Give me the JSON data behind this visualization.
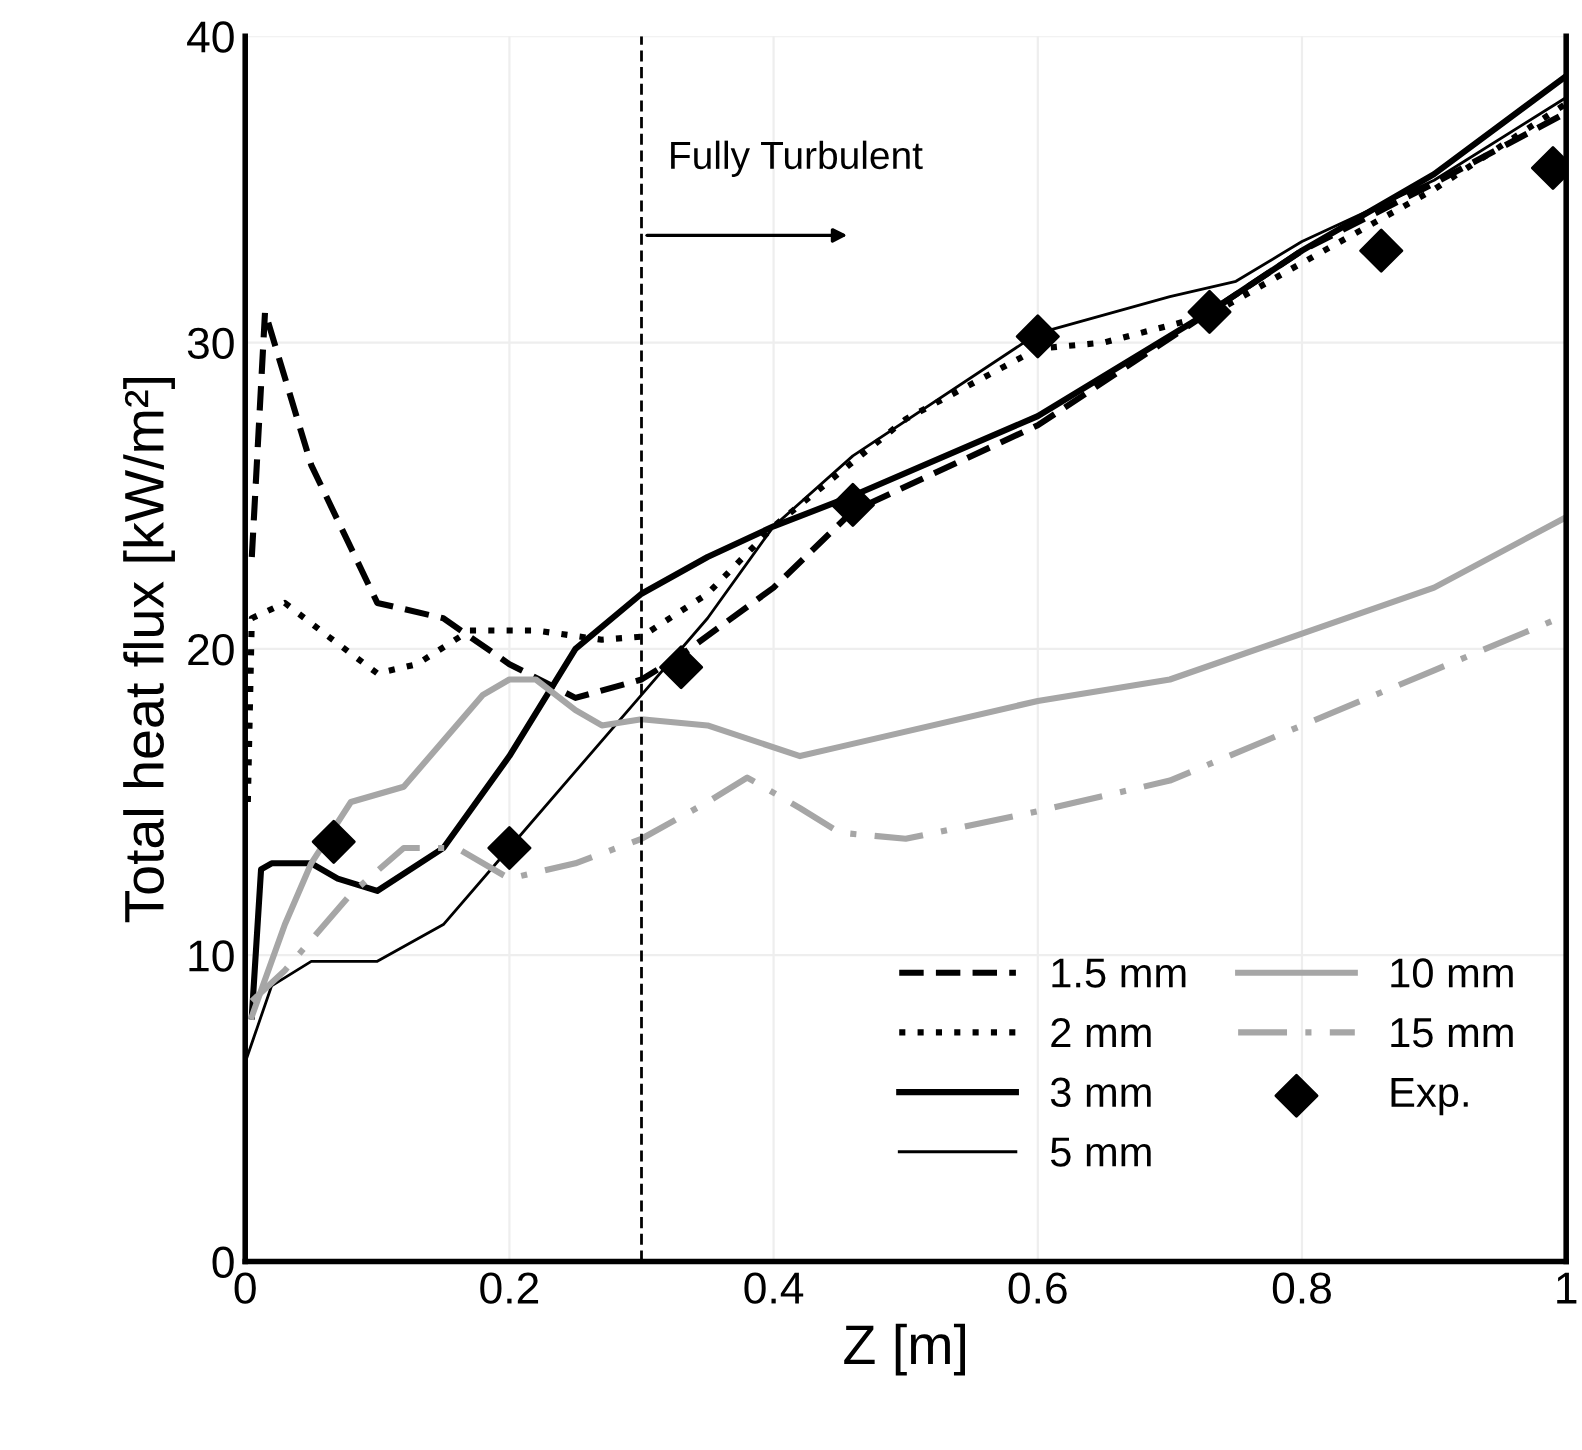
{
  "chart_data": {
    "type": "line",
    "xlabel": "Z [m]",
    "ylabel": "Total heat flux [kW/m²]",
    "xlim": [
      0,
      1
    ],
    "ylim": [
      0,
      40
    ],
    "xticks": [
      0,
      {
        "value": 0.2,
        "label": "0.2"
      },
      {
        "value": 0.4,
        "label": "0.4"
      },
      {
        "value": 0.6,
        "label": "0.6"
      },
      {
        "value": 0.8,
        "label": "0.8"
      },
      1
    ],
    "yticks": [
      0,
      10,
      20,
      30,
      40
    ],
    "grid": true,
    "legend": "bottom right",
    "ref_lines": [
      {
        "axis": "x",
        "value": 0.3,
        "color": "#000000",
        "line_style": "dashed"
      }
    ],
    "annotations": [
      {
        "text": "Fully Turbulent",
        "x": 0.3,
        "y": 33.5
      }
    ],
    "series": [
      {
        "name": "1.5 mm",
        "color": "#000000",
        "line_style": "dashed",
        "x": [
          0.005,
          0.015,
          0.05,
          0.1,
          0.15,
          0.2,
          0.25,
          0.3,
          0.33,
          0.4,
          0.46,
          0.6,
          0.73,
          0.8,
          0.9,
          1.0
        ],
        "values": [
          23,
          31,
          26,
          21.5,
          21,
          19.5,
          18.4,
          19,
          19.8,
          22,
          24.5,
          27.3,
          31,
          33,
          35.2,
          37.5
        ]
      },
      {
        "name": "2 mm",
        "color": "#000000",
        "line_style": "dotted",
        "x": [
          0.002,
          0.005,
          0.03,
          0.06,
          0.1,
          0.13,
          0.17,
          0.22,
          0.27,
          0.3,
          0.35,
          0.4,
          0.5,
          0.6,
          0.65,
          0.73,
          0.8,
          0.9,
          1.0
        ],
        "values": [
          15,
          21,
          21.5,
          20.5,
          19.2,
          19.5,
          20.6,
          20.6,
          20.3,
          20.4,
          21.8,
          24,
          27.5,
          29.8,
          30,
          30.9,
          32.6,
          35,
          37.8
        ]
      },
      {
        "name": "3 mm",
        "color": "#000000",
        "line_style": "solid",
        "x": [
          0.005,
          0.012,
          0.02,
          0.05,
          0.07,
          0.1,
          0.15,
          0.2,
          0.25,
          0.3,
          0.35,
          0.4,
          0.46,
          0.6,
          0.73,
          0.8,
          0.9,
          1.0
        ],
        "values": [
          8,
          12.8,
          13,
          13,
          12.5,
          12.1,
          13.5,
          16.5,
          20,
          21.8,
          23,
          24,
          25,
          27.6,
          31,
          33,
          35.5,
          38.7
        ]
      },
      {
        "name": "5 mm",
        "color": "#000000",
        "line_style": "solid",
        "x": [
          0.0,
          0.02,
          0.05,
          0.1,
          0.15,
          0.2,
          0.25,
          0.3,
          0.35,
          0.4,
          0.46,
          0.6,
          0.7,
          0.75,
          0.8,
          0.9,
          1.0
        ],
        "values": [
          6.5,
          9,
          9.8,
          9.8,
          11,
          13.5,
          16,
          18.5,
          21,
          24,
          26.3,
          30.3,
          31.5,
          32,
          33.3,
          35.3,
          38
        ]
      },
      {
        "name": "10 mm",
        "color": "#a6a6a6",
        "line_style": "solid",
        "x": [
          0.005,
          0.03,
          0.05,
          0.08,
          0.12,
          0.15,
          0.18,
          0.2,
          0.22,
          0.25,
          0.27,
          0.3,
          0.35,
          0.42,
          0.45,
          0.6,
          0.7,
          0.8,
          0.9,
          1.0
        ],
        "values": [
          8,
          11,
          13,
          15,
          15.5,
          17,
          18.5,
          19,
          19,
          18,
          17.5,
          17.7,
          17.5,
          16.5,
          16.8,
          18.3,
          19,
          20.5,
          22,
          24.3
        ]
      },
      {
        "name": "15 mm",
        "color": "#a6a6a6",
        "line_style": "dashdot",
        "x": [
          0.005,
          0.03,
          0.08,
          0.12,
          0.16,
          0.2,
          0.25,
          0.3,
          0.35,
          0.38,
          0.42,
          0.45,
          0.5,
          0.6,
          0.7,
          0.8,
          0.9,
          1.0
        ],
        "values": [
          8.5,
          9.5,
          12,
          13.5,
          13.5,
          12.5,
          13,
          13.8,
          15,
          15.8,
          14.8,
          14,
          13.8,
          14.7,
          15.7,
          17.5,
          19.3,
          21.1
        ]
      },
      {
        "name": "Exp.",
        "type": "scatter",
        "marker": "diamond",
        "color": "#000000",
        "x": [
          0.067,
          0.2,
          0.33,
          0.46,
          0.6,
          0.73,
          0.86,
          0.99
        ],
        "values": [
          13.7,
          13.5,
          19.4,
          24.7,
          30.2,
          31,
          33,
          35.7
        ]
      }
    ]
  }
}
